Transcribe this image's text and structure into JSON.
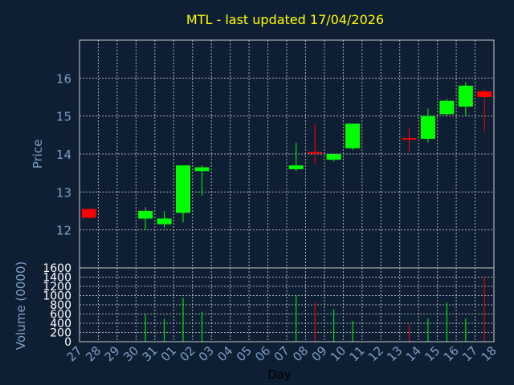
{
  "chart_data": {
    "type": "candlestick",
    "title": "MTL - last updated 17/04/2026",
    "xlabel": "Day",
    "ylabel": "Price",
    "volume_ylabel": "Volume (0000)",
    "x_ticks": [
      "27",
      "28",
      "29",
      "30",
      "31",
      "01",
      "02",
      "03",
      "04",
      "05",
      "06",
      "07",
      "08",
      "09",
      "10",
      "11",
      "12",
      "13",
      "14",
      "15",
      "16",
      "17",
      "18"
    ],
    "price_ylim": [
      11,
      17
    ],
    "price_ticks": [
      12,
      13,
      14,
      15,
      16
    ],
    "volume_ylim": [
      0,
      1600
    ],
    "volume_ticks": [
      0,
      200,
      400,
      600,
      800,
      1000,
      1200,
      1400,
      1600
    ],
    "grid": true,
    "up_color": "#00ff00",
    "down_color": "#ff0000",
    "candles": [
      {
        "day": "27",
        "open": 12.55,
        "high": 12.55,
        "low": 12.3,
        "close": 12.32,
        "volume": 0
      },
      {
        "day": "30",
        "open": 12.3,
        "high": 12.6,
        "low": 12.0,
        "close": 12.5,
        "volume": 600
      },
      {
        "day": "31",
        "open": 12.15,
        "high": 12.5,
        "low": 12.05,
        "close": 12.3,
        "volume": 500
      },
      {
        "day": "01",
        "open": 12.45,
        "high": 13.7,
        "low": 12.2,
        "close": 13.7,
        "volume": 950
      },
      {
        "day": "02",
        "open": 13.55,
        "high": 13.7,
        "low": 12.9,
        "close": 13.65,
        "volume": 650
      },
      {
        "day": "07",
        "open": 13.6,
        "high": 14.3,
        "low": 13.55,
        "close": 13.7,
        "volume": 1000
      },
      {
        "day": "08",
        "open": 14.05,
        "high": 14.8,
        "low": 13.75,
        "close": 14.02,
        "volume": 850
      },
      {
        "day": "09",
        "open": 13.85,
        "high": 14.0,
        "low": 13.8,
        "close": 14.0,
        "volume": 700
      },
      {
        "day": "10",
        "open": 14.15,
        "high": 14.8,
        "low": 14.1,
        "close": 14.8,
        "volume": 450
      },
      {
        "day": "13",
        "open": 14.42,
        "high": 14.7,
        "low": 14.05,
        "close": 14.4,
        "volume": 380
      },
      {
        "day": "14",
        "open": 14.4,
        "high": 15.2,
        "low": 14.3,
        "close": 15.0,
        "volume": 500
      },
      {
        "day": "15",
        "open": 15.05,
        "high": 15.45,
        "low": 15.0,
        "close": 15.4,
        "volume": 850
      },
      {
        "day": "16",
        "open": 15.25,
        "high": 15.9,
        "low": 15.0,
        "close": 15.8,
        "volume": 500
      },
      {
        "day": "17",
        "open": 15.65,
        "high": 15.7,
        "low": 14.6,
        "close": 15.5,
        "volume": 1400
      }
    ]
  }
}
